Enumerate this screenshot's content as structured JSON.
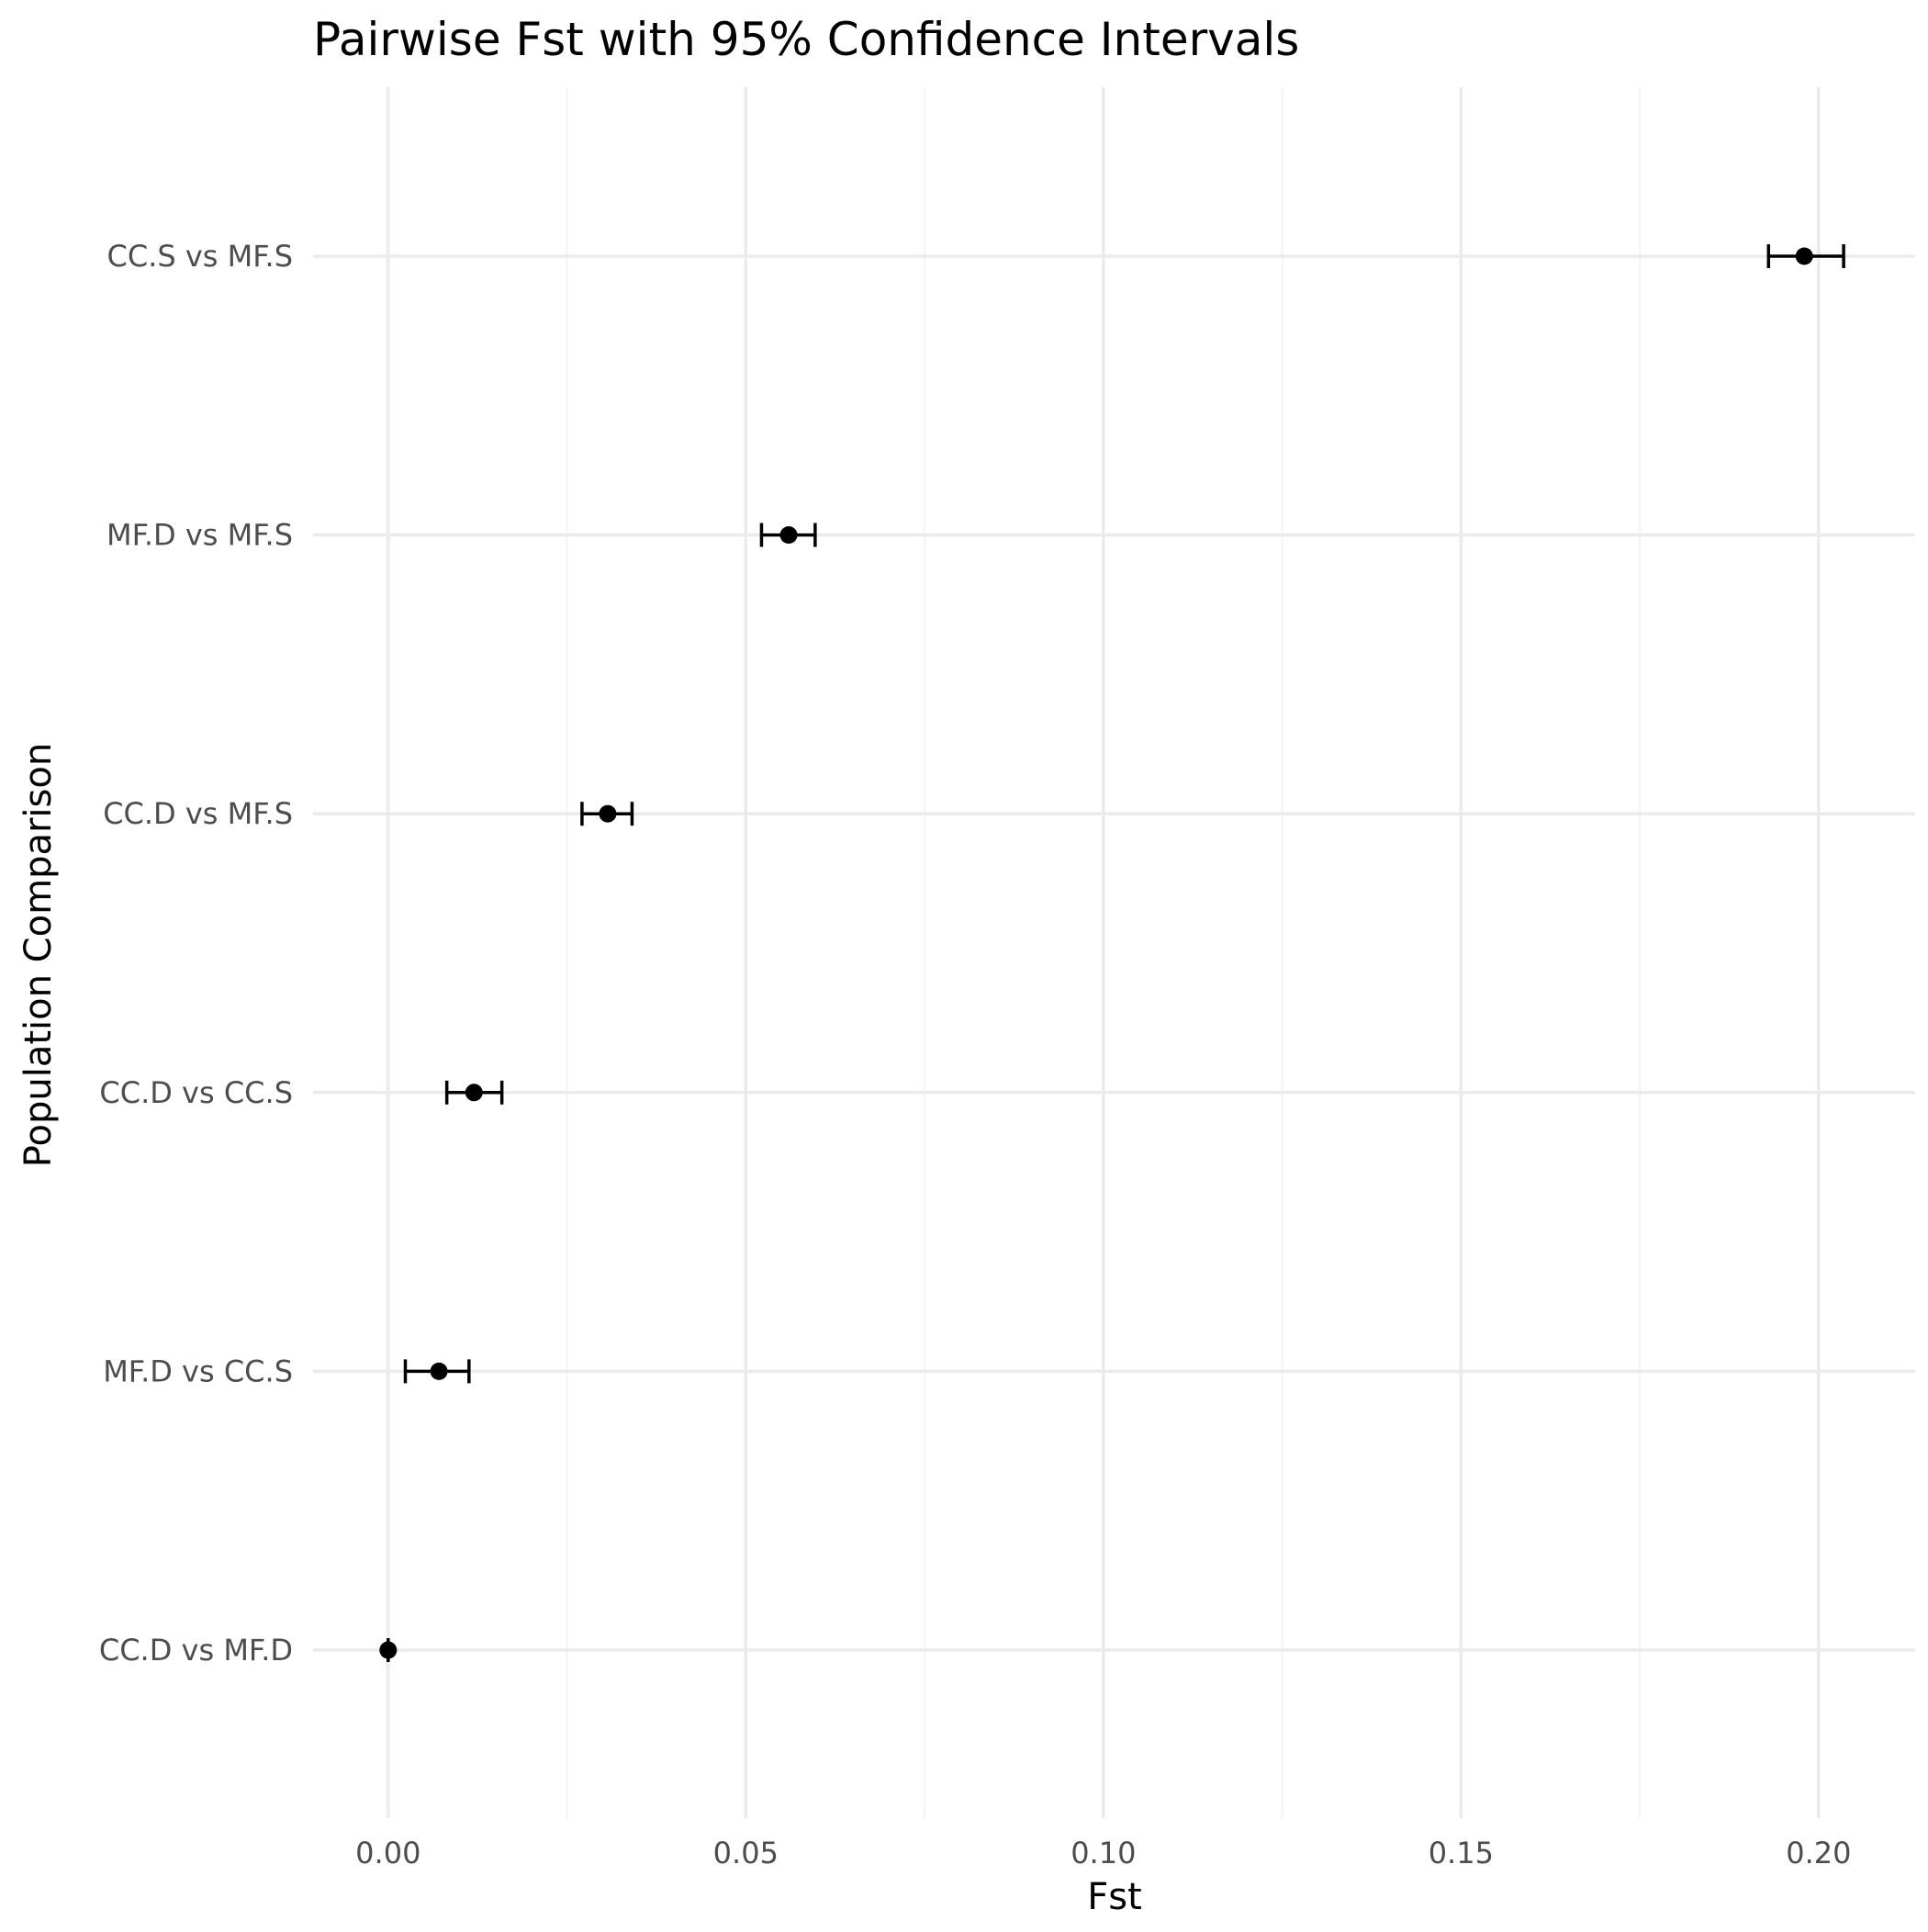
{
  "chart_data": {
    "type": "scatter",
    "title": "Pairwise Fst with 95% Confidence Intervals",
    "xlabel": "Fst",
    "ylabel": "Population Comparison",
    "xlim": [
      -0.0105,
      0.2135
    ],
    "x_ticks": [
      {
        "value": 0.0,
        "label": "0.00"
      },
      {
        "value": 0.05,
        "label": "0.05"
      },
      {
        "value": 0.1,
        "label": "0.10"
      },
      {
        "value": 0.15,
        "label": "0.15"
      },
      {
        "value": 0.2,
        "label": "0.20"
      }
    ],
    "x_minor_ticks": [
      0.025,
      0.075,
      0.125,
      0.175
    ],
    "categories": [
      "CC.S vs MF.S",
      "MF.D vs MF.S",
      "CC.D vs MF.S",
      "CC.D vs CC.S",
      "MF.D vs CC.S",
      "CC.D vs MF.D"
    ],
    "points": [
      {
        "label": "CC.S vs MF.S",
        "fst": 0.198,
        "lower": 0.193,
        "upper": 0.2035
      },
      {
        "label": "MF.D vs MF.S",
        "fst": 0.056,
        "lower": 0.0522,
        "upper": 0.0597
      },
      {
        "label": "CC.D vs MF.S",
        "fst": 0.0307,
        "lower": 0.0271,
        "upper": 0.0341
      },
      {
        "label": "CC.D vs CC.S",
        "fst": 0.012,
        "lower": 0.0082,
        "upper": 0.0159
      },
      {
        "label": "MF.D vs CC.S",
        "fst": 0.0071,
        "lower": 0.0024,
        "upper": 0.0113
      },
      {
        "label": "CC.D vs MF.D",
        "fst": 0.0,
        "lower": 0.0,
        "upper": 0.0
      }
    ],
    "grid": true,
    "legend": "none",
    "colors": {
      "point": "#000000",
      "grid_major": "#ebebeb",
      "grid_minor": "#f3f3f3",
      "tick_text": "#4d4d4d",
      "title_text": "#000000"
    }
  }
}
